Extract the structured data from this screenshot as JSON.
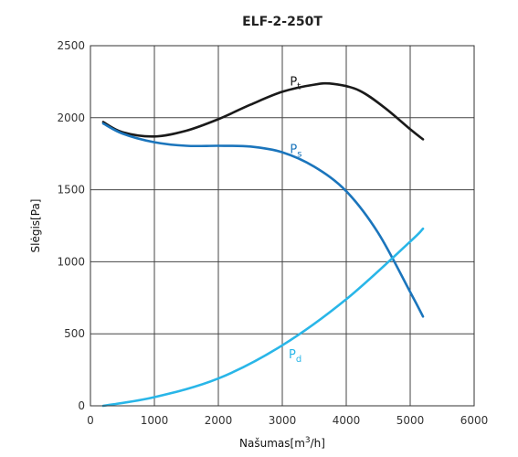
{
  "chart_data": {
    "type": "line",
    "title": "ELF-2-250T",
    "xlabel": {
      "text": "Našumas",
      "unit_pre": "[m",
      "unit_sup": "3",
      "unit_post": "/h]"
    },
    "ylabel": {
      "text": "Slėgis",
      "unit": "[Pa]"
    },
    "xlim": [
      0,
      6000
    ],
    "ylim": [
      0,
      2500
    ],
    "xticks": [
      0,
      1000,
      2000,
      3000,
      4000,
      5000,
      6000
    ],
    "yticks": [
      0,
      500,
      1000,
      1500,
      2000,
      2500
    ],
    "xtick_labels": [
      "0",
      "1000",
      "2000",
      "3000",
      "4000",
      "5000",
      "6000"
    ],
    "ytick_labels": [
      "0",
      "500",
      "1000",
      "1500",
      "2000",
      "2500"
    ],
    "grid": true,
    "series": [
      {
        "label_main": "P",
        "label_sub": "t",
        "color": "#1a1a1a",
        "x": [
          200,
          500,
          1000,
          1500,
          2000,
          2500,
          3000,
          3500,
          3800,
          4200,
          4600,
          5000,
          5200
        ],
        "y": [
          1970,
          1900,
          1870,
          1910,
          1990,
          2090,
          2180,
          2230,
          2235,
          2190,
          2070,
          1920,
          1850
        ]
      },
      {
        "label_main": "P",
        "label_sub": "s",
        "color": "#1b75bc",
        "x": [
          200,
          500,
          1000,
          1500,
          2000,
          2500,
          3000,
          3500,
          4000,
          4500,
          5000,
          5200
        ],
        "y": [
          1960,
          1890,
          1830,
          1805,
          1805,
          1800,
          1760,
          1660,
          1490,
          1200,
          790,
          620
        ]
      },
      {
        "label_main": "P",
        "label_sub": "d",
        "color": "#29b6e8",
        "x": [
          200,
          1000,
          2000,
          3000,
          4000,
          5000,
          5200
        ],
        "y": [
          0,
          60,
          190,
          420,
          740,
          1140,
          1230
        ]
      }
    ],
    "label_anchors": [
      {
        "x": 3120,
        "y": 2225
      },
      {
        "x": 3120,
        "y": 1755
      },
      {
        "x": 3100,
        "y": 330
      }
    ]
  }
}
